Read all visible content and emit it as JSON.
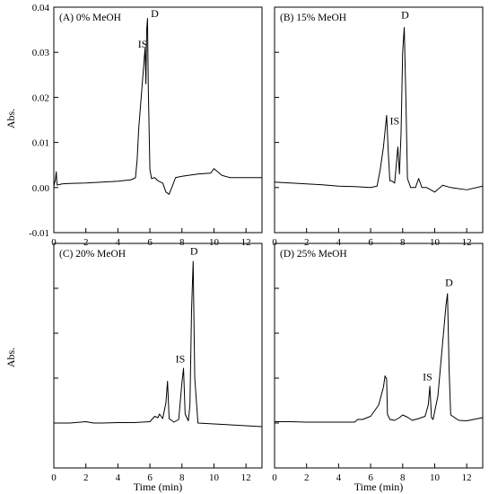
{
  "figure": {
    "ylabel": "Abs.",
    "xlabel": "Time (min)"
  },
  "chart_data": [
    {
      "type": "line",
      "title": "(A) 0% MeOH",
      "xlabel": "",
      "ylabel": "Abs.",
      "xlim": [
        0,
        13
      ],
      "ylim": [
        -0.01,
        0.04
      ],
      "xticks": [
        0,
        2,
        4,
        6,
        8,
        10,
        12
      ],
      "yticks": [
        -0.01,
        0.0,
        0.01,
        0.02,
        0.03,
        0.04
      ],
      "ytick_labels": [
        "-0.01",
        "0.00",
        "0.01",
        "0.02",
        "0.03",
        "0.04"
      ],
      "series": [
        {
          "x": [
            0,
            0.1,
            0.15,
            0.2,
            0.3,
            0.5,
            1.0,
            2.0,
            3.0,
            4.0,
            4.8,
            5.0,
            5.1,
            5.2,
            5.3,
            5.5,
            5.7,
            5.75,
            5.8,
            5.85,
            5.9,
            6.0,
            6.1,
            6.3,
            6.5,
            6.8,
            7.0,
            7.2,
            7.4,
            7.6,
            8.0,
            9.0,
            9.8,
            10.0,
            10.5,
            11.0,
            12.0,
            13.0
          ],
          "y": [
            0.0003,
            0.0018,
            0.0035,
            0.0006,
            0.0006,
            0.0008,
            0.0009,
            0.001,
            0.0012,
            0.0014,
            0.0017,
            0.002,
            0.0022,
            0.006,
            0.013,
            0.022,
            0.031,
            0.023,
            0.035,
            0.0375,
            0.022,
            0.004,
            0.002,
            0.0022,
            0.0015,
            0.001,
            -0.001,
            -0.0015,
            0.0003,
            0.0022,
            0.0025,
            0.003,
            0.0032,
            0.0042,
            0.0027,
            0.0022,
            0.0022,
            0.0022
          ]
        }
      ],
      "annotations": [
        {
          "text": "IS",
          "x": 5.55,
          "y": 0.031
        },
        {
          "text": "D",
          "x": 6.3,
          "y": 0.0378
        }
      ]
    },
    {
      "type": "line",
      "title": "(B) 15% MeOH",
      "xlabel": "",
      "ylabel": "",
      "xlim": [
        0,
        13
      ],
      "ylim": [
        -0.01,
        0.04
      ],
      "xticks": [
        0,
        2,
        4,
        6,
        8,
        10,
        12
      ],
      "yticks": [
        -0.01,
        0.0,
        0.01,
        0.02,
        0.03,
        0.04
      ],
      "series": [
        {
          "x": [
            0,
            1.0,
            2.0,
            3.0,
            4.0,
            5.0,
            6.0,
            6.4,
            6.6,
            6.8,
            7.0,
            7.1,
            7.2,
            7.3,
            7.5,
            7.7,
            7.8,
            7.9,
            8.0,
            8.1,
            8.2,
            8.3,
            8.5,
            8.8,
            9.0,
            9.2,
            9.5,
            10.0,
            10.5,
            11.0,
            12.0,
            13.0
          ],
          "y": [
            0.0012,
            0.001,
            0.0008,
            0.0006,
            0.0003,
            0.0002,
            0.0,
            0.0003,
            0.004,
            0.009,
            0.016,
            0.008,
            0.0015,
            0.0015,
            0.001,
            0.009,
            0.003,
            0.012,
            0.03,
            0.0355,
            0.02,
            0.002,
            0.0,
            0.0,
            0.002,
            0.0,
            0.0,
            -0.001,
            0.0005,
            0.0,
            -0.0005,
            0.0003
          ]
        }
      ],
      "annotations": [
        {
          "text": "IS",
          "x": 7.5,
          "y": 0.014
        },
        {
          "text": "D",
          "x": 8.15,
          "y": 0.0375
        }
      ]
    },
    {
      "type": "line",
      "title": "(C) 20% MeOH",
      "xlabel": "Time (min)",
      "ylabel": "Abs.",
      "xlim": [
        0,
        13
      ],
      "ylim": [
        -0.01,
        0.04
      ],
      "xticks": [
        0,
        2,
        4,
        6,
        8,
        10,
        12
      ],
      "yticks": [
        -0.01,
        0.0,
        0.01,
        0.02,
        0.03,
        0.04
      ],
      "series": [
        {
          "x": [
            0,
            1.0,
            2.0,
            2.5,
            3.0,
            4.0,
            5.0,
            6.0,
            6.3,
            6.5,
            6.6,
            6.8,
            7.0,
            7.1,
            7.2,
            7.5,
            7.8,
            8.0,
            8.1,
            8.2,
            8.4,
            8.5,
            8.6,
            8.7,
            8.8,
            9.0,
            10.0,
            11.0,
            12.0,
            13.0
          ],
          "y": [
            0.0,
            0.0,
            0.0003,
            0.0,
            0.0,
            0.0001,
            0.0001,
            0.0003,
            0.0015,
            0.0012,
            0.002,
            0.001,
            0.0045,
            0.0093,
            0.001,
            0.0002,
            0.0008,
            0.009,
            0.0122,
            0.002,
            0.0005,
            0.004,
            0.025,
            0.036,
            0.01,
            0.0,
            -0.0002,
            -0.0004,
            -0.0006,
            -0.0008
          ]
        }
      ],
      "annotations": [
        {
          "text": "IS",
          "x": 7.9,
          "y": 0.0135
        },
        {
          "text": "D",
          "x": 8.75,
          "y": 0.0375
        }
      ]
    },
    {
      "type": "line",
      "title": "(D) 25% MeOH",
      "xlabel": "Time (min)",
      "ylabel": "",
      "xlim": [
        0,
        13
      ],
      "ylim": [
        -0.01,
        0.04
      ],
      "xticks": [
        0,
        2,
        4,
        6,
        8,
        10,
        12
      ],
      "yticks": [
        -0.01,
        0.0,
        0.01,
        0.02,
        0.03,
        0.04
      ],
      "series": [
        {
          "x": [
            0,
            1.0,
            2.0,
            3.0,
            4.0,
            5.0,
            5.2,
            5.5,
            6.0,
            6.5,
            6.8,
            6.9,
            7.0,
            7.05,
            7.2,
            7.5,
            7.8,
            8.0,
            8.3,
            8.6,
            9.0,
            9.4,
            9.6,
            9.7,
            9.8,
            9.9,
            10.2,
            10.5,
            10.7,
            10.8,
            10.9,
            11.0,
            11.5,
            12.0,
            13.0
          ],
          "y": [
            0.0003,
            0.0003,
            0.0002,
            0.0002,
            0.0002,
            0.0002,
            0.0008,
            0.0008,
            0.0015,
            0.004,
            0.008,
            0.0105,
            0.0098,
            0.002,
            0.0008,
            0.0006,
            0.0012,
            0.0018,
            0.0013,
            0.0006,
            0.001,
            0.0015,
            0.004,
            0.0082,
            0.0012,
            0.0008,
            0.006,
            0.018,
            0.026,
            0.0288,
            0.012,
            0.0018,
            0.0006,
            0.0005,
            0.0012
          ]
        }
      ],
      "annotations": [
        {
          "text": "IS",
          "x": 9.55,
          "y": 0.0095
        },
        {
          "text": "D",
          "x": 10.9,
          "y": 0.0305
        }
      ]
    }
  ]
}
